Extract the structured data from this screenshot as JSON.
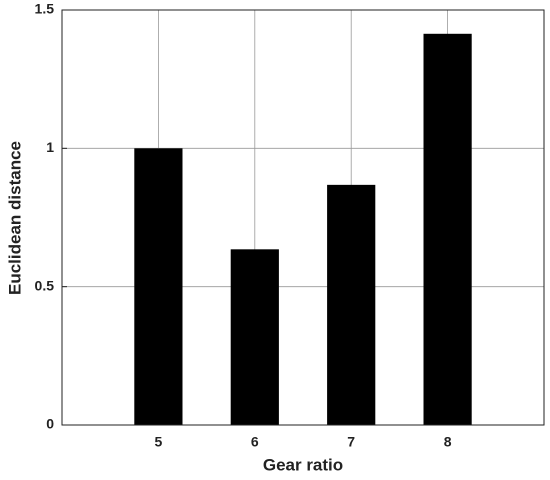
{
  "chart_data": {
    "type": "bar",
    "x": [
      5,
      6,
      7,
      8
    ],
    "values": [
      1.0,
      0.635,
      0.868,
      1.414
    ],
    "color": "#000000",
    "xlabel": "Gear ratio",
    "ylabel": "Euclidean distance",
    "xlim": [
      4,
      9
    ],
    "xticks": [
      5,
      6,
      7,
      8
    ],
    "ylim": [
      0,
      1.5
    ],
    "yticks": [
      0,
      0.5,
      1,
      1.5
    ],
    "grid": true
  }
}
